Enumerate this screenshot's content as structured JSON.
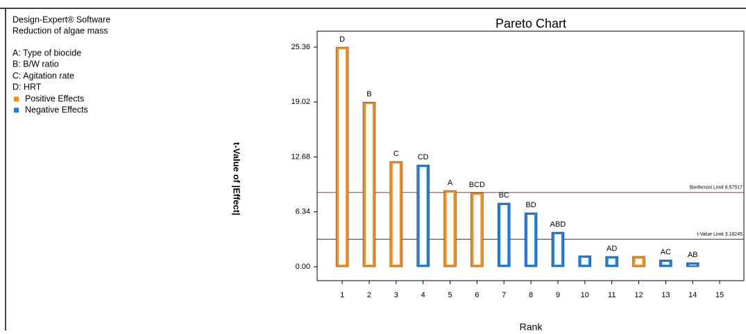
{
  "info": {
    "software": "Design-Expert® Software",
    "response": "Reduction of algae mass",
    "factors": [
      "A: Type of biocide",
      "B: B/W ratio",
      "C: Agitation rate",
      "D: HRT"
    ]
  },
  "chart_data": {
    "type": "bar",
    "title": "Pareto Chart",
    "x_label": "Rank",
    "y_label": "t-Value of |Effect|",
    "x": [
      1,
      2,
      3,
      4,
      5,
      6,
      7,
      8,
      9,
      10,
      11,
      12,
      13,
      14
    ],
    "labels": [
      "D",
      "B",
      "C",
      "CD",
      "A",
      "BCD",
      "BC",
      "BD",
      "ABD",
      null,
      "AD",
      null,
      "AC",
      "AB"
    ],
    "series": [
      {
        "name": "Positive Effects",
        "color": "#f28c1e",
        "values": [
          25.36,
          19.02,
          12.16,
          null,
          8.8,
          8.56,
          null,
          null,
          null,
          null,
          null,
          1.2,
          null,
          null
        ]
      },
      {
        "name": "Negative Effects",
        "color": "#1f7fe0",
        "values": [
          null,
          null,
          null,
          11.76,
          null,
          null,
          7.36,
          6.24,
          4.0,
          1.28,
          1.2,
          null,
          0.8,
          0.48
        ]
      }
    ],
    "xlim": [
      0.07,
      15.9
    ],
    "xticks": [
      1,
      2,
      3,
      4,
      5,
      6,
      7,
      8,
      9,
      10,
      11,
      12,
      13,
      14,
      15
    ],
    "ylim": [
      -1.6,
      27.2
    ],
    "yticks": [
      {
        "value": 0,
        "label": "0.00"
      },
      {
        "value": 6.34,
        "label": "6.34"
      },
      {
        "value": 12.68,
        "label": "12.68"
      },
      {
        "value": 19.02,
        "label": "19.02"
      },
      {
        "value": 25.36,
        "label": "25.36"
      }
    ],
    "reference_lines": [
      {
        "label": "Bonferroni Limit 8.57517",
        "value": 8.57517,
        "color": "#d62020"
      },
      {
        "label": "t-Value Limit 3.18245",
        "value": 3.18245,
        "color": "#1a237e"
      }
    ]
  }
}
